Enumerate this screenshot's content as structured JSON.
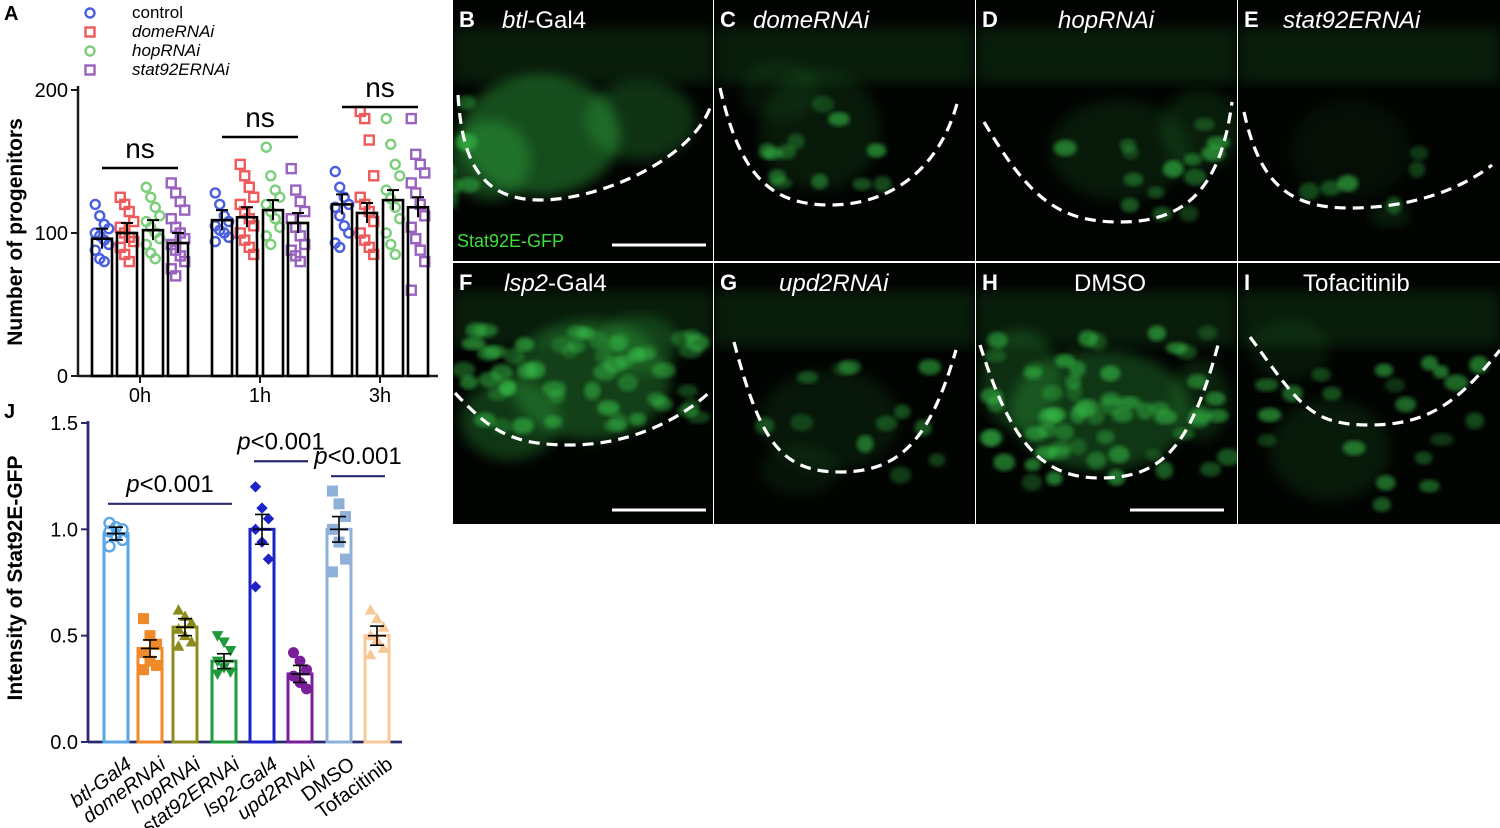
{
  "panel_letters": [
    "A",
    "B",
    "C",
    "D",
    "E",
    "F",
    "G",
    "H",
    "I",
    "J"
  ],
  "colors": {
    "control": "#4a5fe0",
    "domeRNAi": "#ef5a5a",
    "hopRNAi": "#7ccf7a",
    "stat92ERNAi": "#9a62c0",
    "btl": "#5aa7e8",
    "dome": "#f08a28",
    "hop": "#8c8c1e",
    "stat": "#1e9a3a",
    "lsp2": "#1e23c8",
    "upd2": "#7a1e9a",
    "DMSO": "#8fb0d8",
    "Tofa": "#f8c896",
    "tissue": "#39c24a",
    "axis": "#1a1a1a",
    "axisJ": "#2a2a6e"
  },
  "chart_data": [
    {
      "type": "bar",
      "panel": "A",
      "categories": [
        "0h",
        "1h",
        "3h"
      ],
      "ylabel": "Number of progenitors",
      "ylim": [
        0,
        200
      ],
      "yticks": [
        "0",
        "100",
        "200"
      ],
      "legend": "top-left",
      "series": [
        {
          "name": "control",
          "marker": "circle",
          "values": [
            96,
            109,
            120
          ],
          "points": [
            [
              120,
              112,
              106,
              103,
              100,
              98,
              95,
              92,
              88,
              82,
              80
            ],
            [
              128,
              120,
              112,
              108,
              105,
              102,
              100,
              97,
              94
            ],
            [
              143,
              132,
              125,
              120,
              118,
              112,
              105,
              100,
              93,
              90
            ]
          ]
        },
        {
          "name": "domeRNAi",
          "marker": "square",
          "values": [
            100,
            111,
            114
          ],
          "points": [
            [
              125,
              120,
              115,
              108,
              104,
              100,
              97,
              94,
              90,
              85,
              80
            ],
            [
              148,
              140,
              132,
              125,
              120,
              115,
              110,
              105,
              100,
              95,
              90,
              85
            ],
            [
              185,
              180,
              165,
              140,
              125,
              120,
              115,
              108,
              100,
              95,
              90,
              85
            ]
          ]
        },
        {
          "name": "hopRNAi",
          "marker": "circle",
          "values": [
            102,
            116,
            123
          ],
          "points": [
            [
              132,
              125,
              118,
              112,
              108,
              104,
              100,
              96,
              92,
              86,
              82
            ],
            [
              160,
              140,
              130,
              125,
              120,
              115,
              110,
              104,
              98,
              92
            ],
            [
              180,
              162,
              148,
              140,
              130,
              124,
              118,
              110,
              100,
              92,
              85
            ]
          ]
        },
        {
          "name": "stat92ERNAi",
          "marker": "square",
          "values": [
            93,
            107,
            118
          ],
          "points": [
            [
              135,
              128,
              122,
              116,
              110,
              104,
              100,
              96,
              92,
              88,
              84,
              80,
              75,
              70
            ],
            [
              145,
              130,
              122,
              115,
              110,
              104,
              98,
              92,
              88,
              84,
              80
            ],
            [
              180,
              155,
              148,
              142,
              135,
              128,
              120,
              112,
              104,
              96,
              88,
              80,
              60
            ]
          ]
        }
      ],
      "annotations": [
        "ns",
        "ns",
        "ns"
      ]
    },
    {
      "type": "bar",
      "panel": "J",
      "categories": [
        "btl-Gal4",
        "domeRNAi",
        "hopRNAi",
        "stat92ERNAi",
        "lsp2-Gal4",
        "upd2RNAi",
        "DMSO",
        "Tofacitinib"
      ],
      "values": [
        0.98,
        0.44,
        0.54,
        0.38,
        1.0,
        0.32,
        1.0,
        0.5
      ],
      "errors": [
        0.03,
        0.04,
        0.04,
        0.035,
        0.07,
        0.04,
        0.06,
        0.045
      ],
      "markers": [
        "circle",
        "square",
        "triangle",
        "triangle-down",
        "diamond",
        "circle",
        "square",
        "triangle"
      ],
      "points": [
        [
          1.03,
          1.01,
          1.0,
          0.99,
          0.97,
          0.95,
          0.92
        ],
        [
          0.58,
          0.5,
          0.46,
          0.42,
          0.38,
          0.36,
          0.34
        ],
        [
          0.62,
          0.59,
          0.56,
          0.53,
          0.5,
          0.47,
          0.45
        ],
        [
          0.5,
          0.47,
          0.43,
          0.38,
          0.35,
          0.33,
          0.32
        ],
        [
          1.2,
          1.1,
          1.05,
          1.0,
          0.94,
          0.86,
          0.73
        ],
        [
          0.42,
          0.38,
          0.34,
          0.31,
          0.28,
          0.25
        ],
        [
          1.18,
          1.12,
          1.06,
          1.0,
          0.94,
          0.86,
          0.8
        ],
        [
          0.62,
          0.58,
          0.54,
          0.5,
          0.48,
          0.44,
          0.41
        ]
      ],
      "ylabel": "Intensity of Stat92E-GFP",
      "ylim": [
        0,
        1.5
      ],
      "yticks": [
        "0.0",
        "0.5",
        "1.0",
        "1.5"
      ],
      "pvalues": [
        {
          "label": "<0.001",
          "from": 0,
          "to": 3,
          "y": 1.12
        },
        {
          "label": "<0.001",
          "from": 4,
          "to": 5,
          "y": 1.32
        },
        {
          "label": "<0.001",
          "from": 6,
          "to": 7,
          "y": 1.25
        }
      ]
    }
  ],
  "micrographs": {
    "scale_label": "Stat92E-GFP",
    "panels": [
      {
        "letter": "B",
        "title_italic": "btl",
        "title_rest": "-Gal4"
      },
      {
        "letter": "C",
        "title_italic": "domeRNAi",
        "title_rest": ""
      },
      {
        "letter": "D",
        "title_italic": "hopRNAi",
        "title_rest": ""
      },
      {
        "letter": "E",
        "title_italic": "stat92ERNAi",
        "title_rest": ""
      },
      {
        "letter": "F",
        "title_italic": "lsp2",
        "title_rest": "-Gal4"
      },
      {
        "letter": "G",
        "title_italic": "upd2RNAi",
        "title_rest": ""
      },
      {
        "letter": "H",
        "title_italic": "",
        "title_rest": "DMSO"
      },
      {
        "letter": "I",
        "title_italic": "",
        "title_rest": "Tofacitinib"
      }
    ]
  },
  "pvalue_prefix": "p"
}
